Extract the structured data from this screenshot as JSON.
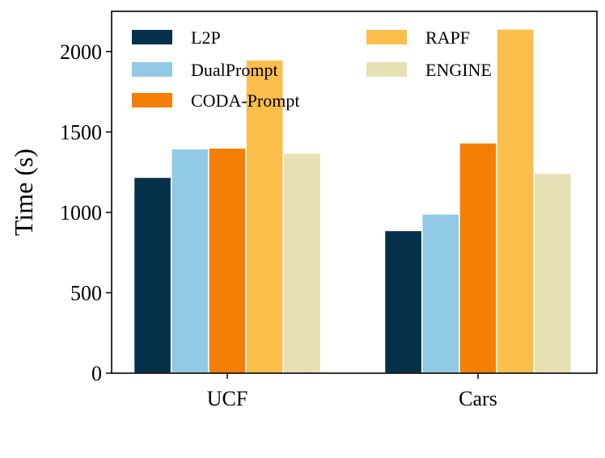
{
  "chart_data": {
    "type": "bar",
    "title": "",
    "xlabel": "",
    "ylabel": "Time (s)",
    "categories": [
      "UCF",
      "Cars"
    ],
    "ylim": [
      0,
      2250
    ],
    "yticks": [
      0,
      500,
      1000,
      1500,
      2000
    ],
    "grid": false,
    "legend_position": "top",
    "series": [
      {
        "name": "L2P",
        "color": "#05314a",
        "values": [
          1218,
          887
        ]
      },
      {
        "name": "DualPrompt",
        "color": "#92cae6",
        "values": [
          1395,
          990
        ]
      },
      {
        "name": "CODA-Prompt",
        "color": "#f57f06",
        "values": [
          1400,
          1432
        ]
      },
      {
        "name": "RAPF",
        "color": "#fcbe4b",
        "values": [
          1948,
          2140
        ]
      },
      {
        "name": "ENGINE",
        "color": "#e7e0b5",
        "values": [
          1368,
          1243
        ]
      }
    ]
  }
}
